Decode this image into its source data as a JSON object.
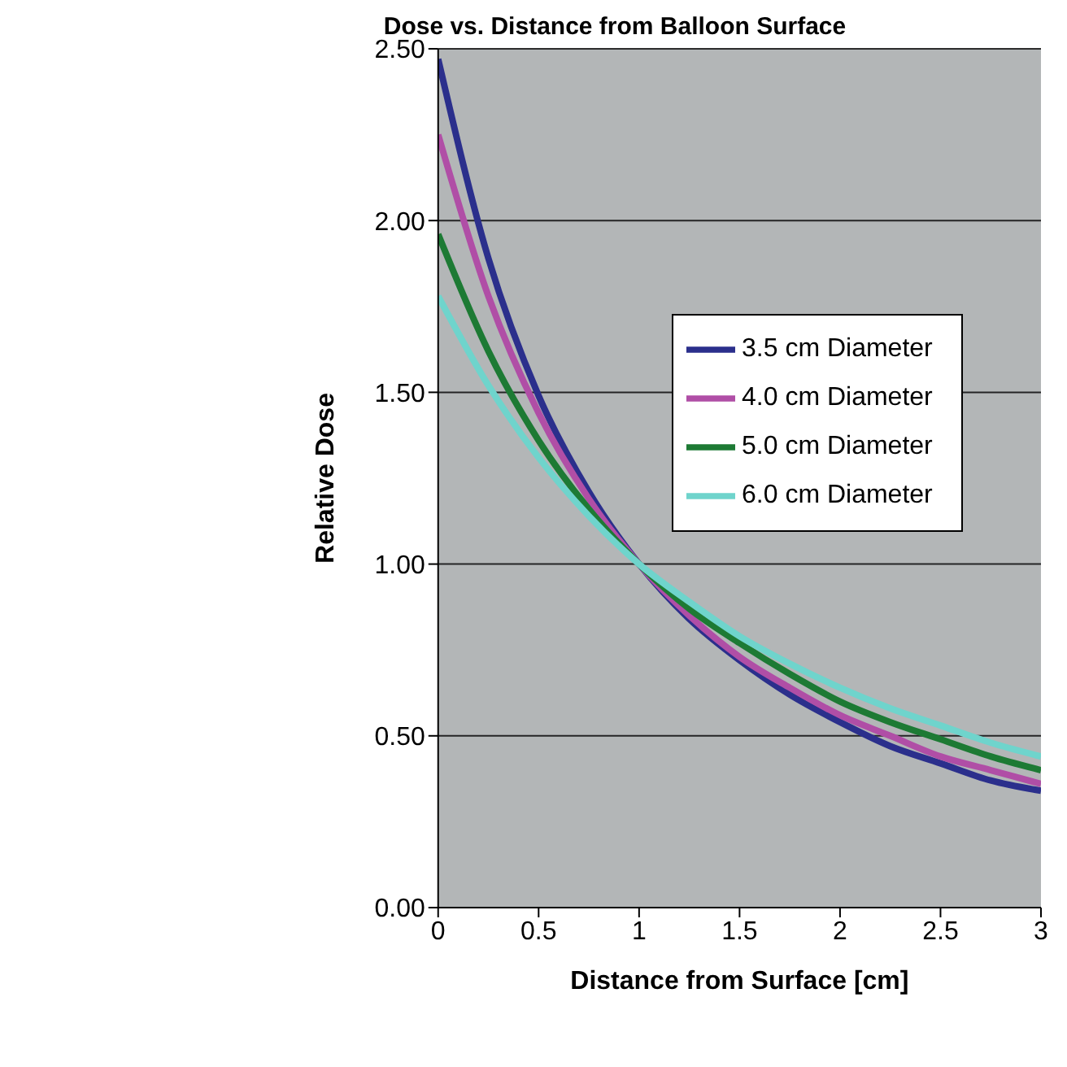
{
  "chart_data": {
    "type": "line",
    "title": "Dose vs. Distance from Balloon Surface",
    "xlabel": "Distance from Surface [cm]",
    "ylabel": "Relative Dose",
    "x": [
      0,
      0.25,
      0.5,
      0.75,
      1,
      1.25,
      1.5,
      1.75,
      2,
      2.25,
      2.5,
      2.75,
      3
    ],
    "series": [
      {
        "name": "3.5 cm Diameter",
        "color": "#2b2f8c",
        "values": [
          2.47,
          1.89,
          1.49,
          1.21,
          1.0,
          0.84,
          0.72,
          0.62,
          0.54,
          0.47,
          0.42,
          0.37,
          0.34
        ]
      },
      {
        "name": "4.0 cm Diameter",
        "color": "#b04ea6",
        "values": [
          2.25,
          1.78,
          1.44,
          1.19,
          1.0,
          0.85,
          0.73,
          0.64,
          0.56,
          0.5,
          0.44,
          0.4,
          0.36
        ]
      },
      {
        "name": "5.0 cm Diameter",
        "color": "#1d7a34",
        "values": [
          1.96,
          1.62,
          1.36,
          1.16,
          1.0,
          0.87,
          0.77,
          0.68,
          0.6,
          0.54,
          0.49,
          0.44,
          0.4
        ]
      },
      {
        "name": "6.0 cm Diameter",
        "color": "#6fd4cc",
        "values": [
          1.78,
          1.52,
          1.31,
          1.14,
          1.0,
          0.89,
          0.79,
          0.71,
          0.64,
          0.58,
          0.53,
          0.48,
          0.44
        ]
      }
    ],
    "xlim": [
      0,
      3
    ],
    "xticks": [
      0,
      0.5,
      1,
      1.5,
      2,
      2.5,
      3
    ],
    "ylim": [
      0,
      2.5
    ],
    "yticks": [
      {
        "value": 0,
        "label": "0.00"
      },
      {
        "value": 0.5,
        "label": "0.50"
      },
      {
        "value": 1,
        "label": "1.00"
      },
      {
        "value": 1.5,
        "label": "1.50"
      },
      {
        "value": 2,
        "label": "2.00"
      },
      {
        "value": 2.5,
        "label": "2.50"
      }
    ],
    "grid": "y",
    "legend": "right",
    "marker": "none",
    "line_style": "solid"
  }
}
